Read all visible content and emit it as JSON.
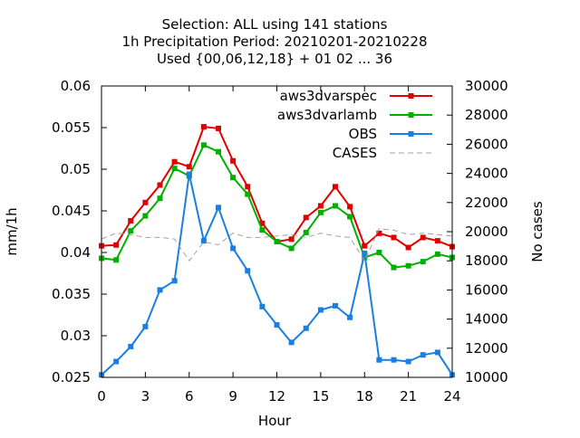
{
  "chart_data": {
    "type": "line",
    "title": [
      "Selection: ALL using   141 stations",
      "1h Precipitation   Period: 20210201-20210228",
      "Used {00,06,12,18} + 01 02 ... 36"
    ],
    "xlabel": "Hour",
    "ylabel": "mm/1h",
    "y2label": "No cases",
    "xlim": [
      0,
      24
    ],
    "ylim": [
      0.025,
      0.06
    ],
    "y2lim": [
      10000,
      30000
    ],
    "xticks": [
      "0",
      "3",
      "6",
      "9",
      "12",
      "15",
      "18",
      "21",
      "24"
    ],
    "yticks": [
      "0.025",
      "0.03",
      "0.035",
      "0.04",
      "0.045",
      "0.05",
      "0.055",
      "0.06"
    ],
    "y2ticks": [
      "10000",
      "12000",
      "14000",
      "16000",
      "18000",
      "20000",
      "22000",
      "24000",
      "26000",
      "28000",
      "30000"
    ],
    "grid": false,
    "legend_position": "top-right",
    "x": [
      0,
      1,
      2,
      3,
      4,
      5,
      6,
      7,
      8,
      9,
      10,
      11,
      12,
      13,
      14,
      15,
      16,
      17,
      18,
      19,
      20,
      21,
      22,
      23,
      24
    ],
    "series": [
      {
        "name": "aws3dvarspec",
        "axis": "left",
        "color": "#e00000",
        "marker": "square",
        "values": [
          0.0408,
          0.0409,
          0.0438,
          0.046,
          0.0481,
          0.0509,
          0.0503,
          0.0551,
          0.0549,
          0.051,
          0.0479,
          0.0435,
          0.0413,
          0.0416,
          0.0442,
          0.0456,
          0.0479,
          0.0455,
          0.0408,
          0.0423,
          0.0418,
          0.0406,
          0.0418,
          0.0414,
          0.0407
        ]
      },
      {
        "name": "aws3dvarlamb",
        "axis": "left",
        "color": "#00b000",
        "marker": "square",
        "values": [
          0.0393,
          0.0391,
          0.0426,
          0.0444,
          0.0465,
          0.0501,
          0.0492,
          0.0529,
          0.0521,
          0.049,
          0.047,
          0.0427,
          0.0413,
          0.0405,
          0.0424,
          0.0448,
          0.0456,
          0.0443,
          0.0394,
          0.04,
          0.0382,
          0.0384,
          0.0389,
          0.0398,
          0.0394
        ]
      },
      {
        "name": "OBS",
        "axis": "left",
        "color": "#1a7fe0",
        "marker": "square",
        "values": [
          0.0253,
          0.0269,
          0.0287,
          0.0311,
          0.0355,
          0.0366,
          0.0494,
          0.0414,
          0.0454,
          0.0405,
          0.0378,
          0.0335,
          0.0313,
          0.0292,
          0.0309,
          0.0331,
          0.0336,
          0.0322,
          0.0399,
          0.0271,
          0.0271,
          0.0269,
          0.0277,
          0.028,
          0.0253
        ]
      },
      {
        "name": "CASES",
        "axis": "right",
        "color": "#a0a0a0",
        "dashed": true,
        "values": [
          19500,
          19900,
          19800,
          19600,
          19600,
          19500,
          18000,
          19300,
          19100,
          19900,
          19600,
          19600,
          19700,
          19800,
          19600,
          19900,
          19700,
          19600,
          18000,
          20200,
          20100,
          19800,
          19900,
          19800,
          19700
        ]
      }
    ]
  }
}
